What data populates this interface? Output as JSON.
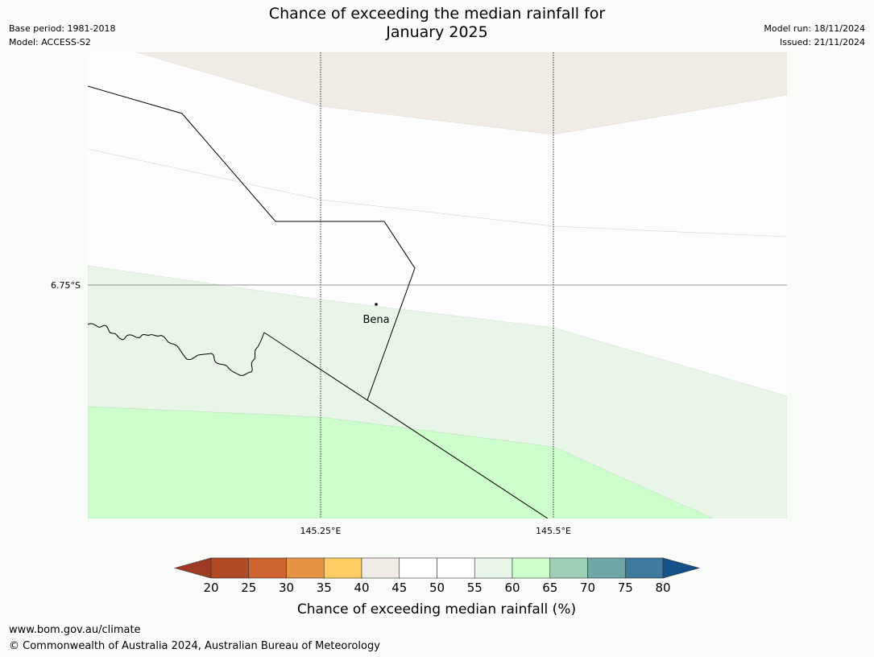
{
  "header": {
    "title_line1": "Chance of exceeding the median rainfall for",
    "title_line2": "January 2025",
    "base_period": "Base period: 1981-2018",
    "model": "Model: ACCESS-S2",
    "model_run": "Model run: 18/11/2024",
    "issued": "Issued: 21/11/2024"
  },
  "map": {
    "place": "Bena",
    "lat_label": "6.75°S",
    "lon_labels": [
      "145.25°E",
      "145.5°E"
    ]
  },
  "legend": {
    "title": "Chance of exceeding median rainfall (%)",
    "ticks": [
      "20",
      "25",
      "30",
      "35",
      "40",
      "45",
      "50",
      "55",
      "60",
      "65",
      "70",
      "75",
      "80"
    ],
    "colors": [
      "#9e3b24",
      "#b24a26",
      "#cd6330",
      "#e49443",
      "#ffcc66",
      "#f1ebe6",
      "#ffffff",
      "#ffffff",
      "#e9f5e9",
      "#ccffcc",
      "#9dcfb6",
      "#6fa6a6",
      "#3f7a9d",
      "#15508a"
    ]
  },
  "footer": {
    "url": "www.bom.gov.au/climate",
    "copyright": "© Commonwealth of Australia 2024, Australian Bureau of Meteorology"
  }
}
